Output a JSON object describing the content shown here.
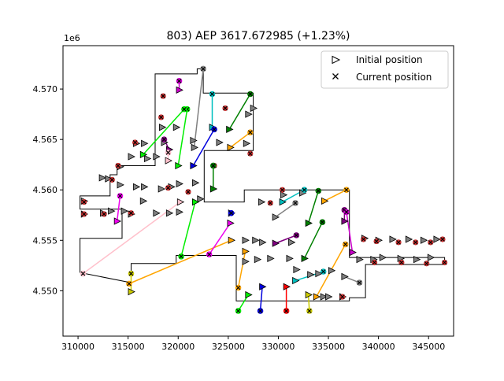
{
  "chart_data": {
    "type": "scatter",
    "title": "803) AEP 3617.672985  (+1.23%)",
    "xlabel": "",
    "ylabel": "",
    "y_offset_label": "1e6",
    "xlim": [
      308500,
      347500
    ],
    "ylim": [
      4545500,
      4574300
    ],
    "xticks": [
      310000,
      315000,
      320000,
      325000,
      330000,
      335000,
      340000,
      345000
    ],
    "xtick_labels": [
      "310000",
      "315000",
      "320000",
      "325000",
      "330000",
      "335000",
      "340000",
      "345000"
    ],
    "yticks": [
      4550000,
      4555000,
      4560000,
      4565000,
      4570000
    ],
    "ytick_labels": [
      "4.550",
      "4.555",
      "4.560",
      "4.565",
      "4.570"
    ],
    "grid": false,
    "legend": {
      "placement": "top-right",
      "entries": [
        {
          "label": "Initial position",
          "marker": "triangle-right"
        },
        {
          "label": "Current position",
          "marker": "x"
        }
      ]
    },
    "boundary": [
      [
        310200,
        4551800
      ],
      [
        310200,
        4555200
      ],
      [
        314400,
        4555200
      ],
      [
        314400,
        4558100
      ],
      [
        310200,
        4558100
      ],
      [
        310200,
        4559400
      ],
      [
        313200,
        4559400
      ],
      [
        313200,
        4561500
      ],
      [
        313900,
        4561500
      ],
      [
        313900,
        4562400
      ],
      [
        317700,
        4562400
      ],
      [
        317700,
        4571500
      ],
      [
        321900,
        4571500
      ],
      [
        321900,
        4572000
      ],
      [
        322500,
        4572000
      ],
      [
        322500,
        4569600
      ],
      [
        327500,
        4569600
      ],
      [
        327500,
        4563900
      ],
      [
        322600,
        4563900
      ],
      [
        322600,
        4558800
      ],
      [
        326600,
        4558800
      ],
      [
        326600,
        4560000
      ],
      [
        337100,
        4560000
      ],
      [
        337100,
        4553300
      ],
      [
        346600,
        4553300
      ],
      [
        346600,
        4552600
      ],
      [
        338700,
        4552600
      ],
      [
        338700,
        4549300
      ],
      [
        337100,
        4549300
      ],
      [
        337100,
        4549000
      ],
      [
        325800,
        4549000
      ],
      [
        325800,
        4553500
      ],
      [
        319800,
        4553500
      ],
      [
        319800,
        4552700
      ],
      [
        315300,
        4552700
      ],
      [
        315300,
        4550800
      ],
      [
        310200,
        4551800
      ]
    ],
    "series": [
      {
        "color": "#ffc0cb",
        "initial": [
          320200,
          4558800
        ],
        "current": [
          310500,
          4551700
        ]
      },
      {
        "color": "#ffa500",
        "initial": [
          325300,
          4555000
        ],
        "current": [
          315100,
          4550700
        ]
      },
      {
        "color": "#00ee00",
        "initial": [
          321700,
          4558800
        ],
        "current": [
          320300,
          4553400
        ]
      },
      {
        "color": "#ee00ee",
        "initial": [
          325200,
          4556700
        ],
        "current": [
          323100,
          4553600
        ]
      },
      {
        "color": "#00ee00",
        "initial": [
          320000,
          4562400
        ],
        "current": [
          320900,
          4568000
        ]
      },
      {
        "color": "#808080",
        "initial": [
          321600,
          4564200
        ],
        "current": [
          322500,
          4572000
        ]
      },
      {
        "color": "#00bfbf",
        "initial": [
          323400,
          4566200
        ],
        "current": [
          323400,
          4569500
        ]
      },
      {
        "color": "#008000",
        "initial": [
          325100,
          4566000
        ],
        "current": [
          327200,
          4569500
        ]
      },
      {
        "color": "#0000dd",
        "initial": [
          321500,
          4562400
        ],
        "current": [
          323600,
          4566000
        ]
      },
      {
        "color": "#cc00cc",
        "initial": [
          320100,
          4569900
        ],
        "current": [
          320100,
          4570800
        ]
      },
      {
        "color": "#800080",
        "initial": [
          319100,
          4564000
        ],
        "current": [
          318600,
          4565000
        ]
      },
      {
        "color": "#00ee00",
        "initial": [
          316500,
          4563500
        ],
        "current": [
          320600,
          4568000
        ]
      },
      {
        "color": "#ffc0cb",
        "initial": [
          319000,
          4562900
        ],
        "current": [
          319000,
          4563700
        ]
      },
      {
        "color": "#ee00ee",
        "initial": [
          313900,
          4556900
        ],
        "current": [
          314200,
          4559400
        ]
      },
      {
        "color": "#008000",
        "initial": [
          323500,
          4560100
        ],
        "current": [
          323500,
          4562400
        ]
      },
      {
        "color": "#ffa500",
        "initial": [
          325200,
          4564200
        ],
        "current": [
          327200,
          4565700
        ]
      },
      {
        "color": "#00bfbf",
        "initial": [
          330400,
          4558800
        ],
        "current": [
          332600,
          4560000
        ]
      },
      {
        "color": "#808080",
        "initial": [
          329700,
          4557300
        ],
        "current": [
          331700,
          4558700
        ]
      },
      {
        "color": "#008000",
        "initial": [
          333000,
          4556700
        ],
        "current": [
          334000,
          4559900
        ]
      },
      {
        "color": "#ffa500",
        "initial": [
          334600,
          4558900
        ],
        "current": [
          336800,
          4560000
        ]
      },
      {
        "color": "#800080",
        "initial": [
          329700,
          4554700
        ],
        "current": [
          331800,
          4555500
        ]
      },
      {
        "color": "#008000",
        "initial": [
          332600,
          4553200
        ],
        "current": [
          334400,
          4556800
        ]
      },
      {
        "color": "#ffa500",
        "initial": [
          333800,
          4549400
        ],
        "current": [
          336700,
          4554600
        ]
      },
      {
        "color": "#00bfbf",
        "initial": [
          331700,
          4551000
        ],
        "current": [
          334500,
          4551900
        ]
      },
      {
        "color": "#0000dd",
        "initial": [
          328400,
          4550400
        ],
        "current": [
          328200,
          4548000
        ]
      },
      {
        "color": "#ff0000",
        "initial": [
          330800,
          4550400
        ],
        "current": [
          330800,
          4548000
        ]
      },
      {
        "color": "#cccc00",
        "initial": [
          333000,
          4549600
        ],
        "current": [
          333100,
          4548000
        ]
      },
      {
        "color": "#00ee00",
        "initial": [
          327000,
          4549600
        ],
        "current": [
          326000,
          4548000
        ]
      },
      {
        "color": "#ffa500",
        "initial": [
          326700,
          4553900
        ],
        "current": [
          326000,
          4550300
        ]
      },
      {
        "color": "#808080",
        "initial": [
          336600,
          4551400
        ],
        "current": [
          338100,
          4550800
        ]
      },
      {
        "color": "#800080",
        "initial": [
          336600,
          4556900
        ],
        "current": [
          336600,
          4558000
        ]
      },
      {
        "color": "#cc00cc",
        "initial": [
          337400,
          4553800
        ],
        "current": [
          336800,
          4557800
        ]
      },
      {
        "color": "#0000dd",
        "initial": [
          325300,
          4557700
        ],
        "current": [
          325300,
          4557700
        ]
      },
      {
        "color": "#cccc00",
        "initial": [
          315300,
          4549900
        ],
        "current": [
          315300,
          4551700
        ]
      }
    ],
    "static_initial": [
      [
        310600,
        4558900
      ],
      [
        310600,
        4557600
      ],
      [
        312500,
        4557700
      ],
      [
        313300,
        4557900
      ],
      [
        314600,
        4557900
      ],
      [
        315300,
        4557600
      ],
      [
        316500,
        4558900
      ],
      [
        317800,
        4557700
      ],
      [
        319100,
        4557700
      ],
      [
        320100,
        4557800
      ],
      [
        322200,
        4559100
      ],
      [
        312400,
        4561200
      ],
      [
        313000,
        4561100
      ],
      [
        314200,
        4560500
      ],
      [
        315800,
        4560300
      ],
      [
        316600,
        4560300
      ],
      [
        318300,
        4560100
      ],
      [
        319300,
        4560300
      ],
      [
        320100,
        4560600
      ],
      [
        321700,
        4560700
      ],
      [
        314200,
        4562300
      ],
      [
        315300,
        4563300
      ],
      [
        316900,
        4563100
      ],
      [
        317800,
        4563300
      ],
      [
        315800,
        4564600
      ],
      [
        316600,
        4564600
      ],
      [
        318600,
        4564700
      ],
      [
        321500,
        4564900
      ],
      [
        324100,
        4564700
      ],
      [
        326800,
        4564600
      ],
      [
        327000,
        4567500
      ],
      [
        318400,
        4566200
      ],
      [
        319800,
        4566200
      ],
      [
        327500,
        4568100
      ],
      [
        328300,
        4558800
      ],
      [
        330500,
        4559500
      ],
      [
        332400,
        4559700
      ],
      [
        326700,
        4555000
      ],
      [
        327700,
        4555000
      ],
      [
        328400,
        4554800
      ],
      [
        331300,
        4554800
      ],
      [
        326700,
        4552900
      ],
      [
        327900,
        4553100
      ],
      [
        329200,
        4553200
      ],
      [
        331100,
        4553200
      ],
      [
        331800,
        4552100
      ],
      [
        333200,
        4551600
      ],
      [
        334000,
        4551700
      ],
      [
        334500,
        4549400
      ],
      [
        335000,
        4549400
      ],
      [
        336400,
        4549400
      ],
      [
        335300,
        4552000
      ],
      [
        338100,
        4553100
      ],
      [
        339500,
        4553100
      ],
      [
        340400,
        4553300
      ],
      [
        342200,
        4553200
      ],
      [
        343800,
        4553100
      ],
      [
        345200,
        4553300
      ],
      [
        345800,
        4555100
      ],
      [
        344500,
        4555000
      ],
      [
        343000,
        4555100
      ],
      [
        341400,
        4555100
      ],
      [
        340000,
        4555000
      ],
      [
        338600,
        4555200
      ]
    ],
    "static_current": [
      [
        310600,
        4558800
      ],
      [
        310600,
        4557600
      ],
      [
        312600,
        4557600
      ],
      [
        315300,
        4557700
      ],
      [
        315700,
        4564700
      ],
      [
        314000,
        4562400
      ],
      [
        319000,
        4563700
      ],
      [
        323600,
        4562400
      ],
      [
        318500,
        4569300
      ],
      [
        318300,
        4567200
      ],
      [
        324700,
        4568100
      ],
      [
        319000,
        4560200
      ],
      [
        321000,
        4559800
      ],
      [
        313400,
        4561000
      ],
      [
        329200,
        4558700
      ],
      [
        327200,
        4563600
      ],
      [
        330400,
        4560000
      ],
      [
        338500,
        4555100
      ],
      [
        339800,
        4554900
      ],
      [
        342000,
        4554800
      ],
      [
        343700,
        4554800
      ],
      [
        345200,
        4554800
      ],
      [
        346400,
        4555100
      ],
      [
        342300,
        4552800
      ],
      [
        339600,
        4552800
      ],
      [
        344800,
        4552700
      ],
      [
        346600,
        4552800
      ],
      [
        336400,
        4549400
      ]
    ]
  }
}
